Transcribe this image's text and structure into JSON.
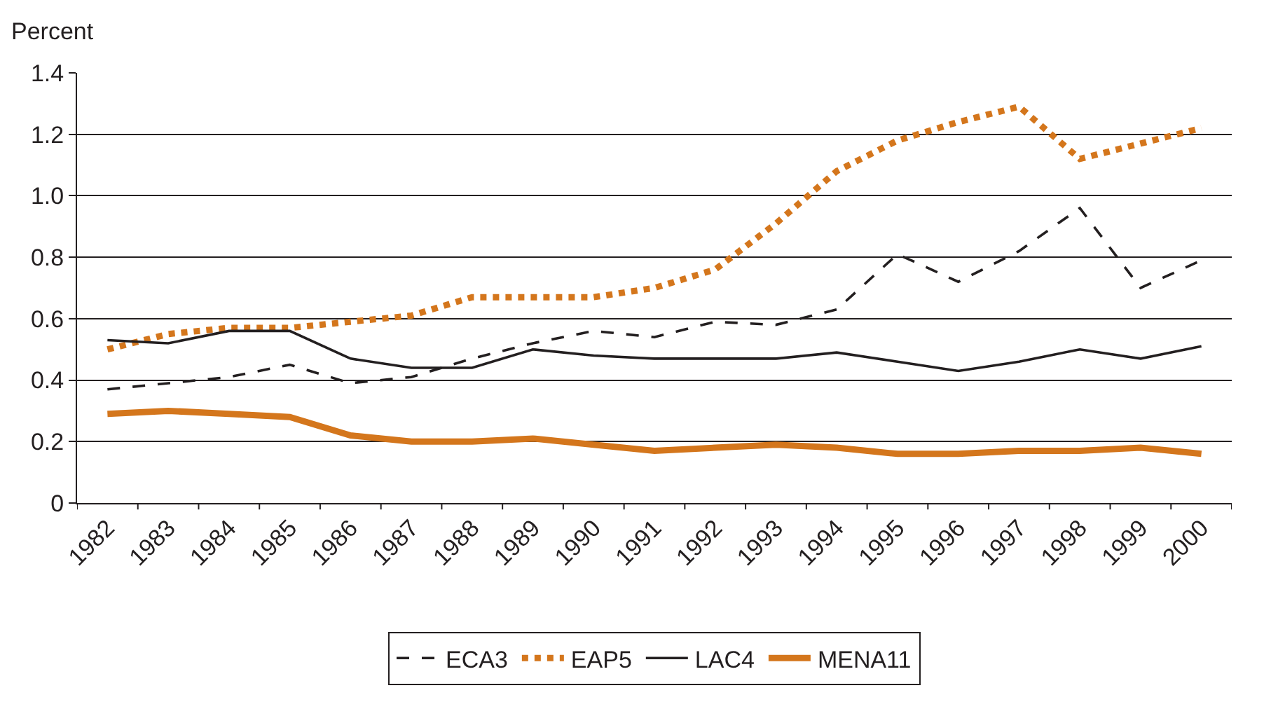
{
  "chart_data": {
    "type": "line",
    "ylabel": "Percent",
    "categories": [
      "1982",
      "1983",
      "1984",
      "1985",
      "1986",
      "1987",
      "1988",
      "1989",
      "1990",
      "1991",
      "1992",
      "1993",
      "1994",
      "1995",
      "1996",
      "1997",
      "1998",
      "1999",
      "2000"
    ],
    "series": [
      {
        "name": "ECA3",
        "color": "#231f20",
        "line_style": "dashed",
        "values": [
          0.37,
          0.39,
          0.41,
          0.45,
          0.39,
          0.41,
          0.47,
          0.52,
          0.56,
          0.54,
          0.59,
          0.58,
          0.63,
          0.81,
          0.72,
          0.82,
          0.96,
          0.7,
          0.79
        ]
      },
      {
        "name": "EAP5",
        "color": "#d4761c",
        "line_style": "dotted",
        "values": [
          0.5,
          0.55,
          0.57,
          0.57,
          0.59,
          0.61,
          0.67,
          0.67,
          0.67,
          0.7,
          0.76,
          0.91,
          1.08,
          1.18,
          1.24,
          1.29,
          1.12,
          1.17,
          1.22
        ]
      },
      {
        "name": "LAC4",
        "color": "#231f20",
        "line_style": "solid",
        "values": [
          0.53,
          0.52,
          0.56,
          0.56,
          0.47,
          0.44,
          0.44,
          0.5,
          0.48,
          0.47,
          0.47,
          0.47,
          0.49,
          0.46,
          0.43,
          0.46,
          0.5,
          0.47,
          0.51
        ]
      },
      {
        "name": "MENA11",
        "color": "#d4761c",
        "line_style": "solid",
        "values": [
          0.29,
          0.3,
          0.29,
          0.28,
          0.22,
          0.2,
          0.2,
          0.21,
          0.19,
          0.17,
          0.18,
          0.19,
          0.18,
          0.16,
          0.16,
          0.17,
          0.17,
          0.18,
          0.16
        ]
      }
    ],
    "ylim": [
      0,
      1.4
    ],
    "yticks": [
      0,
      {
        "value": 0.2,
        "label": "0.2"
      },
      {
        "value": 0.4,
        "label": "0.4"
      },
      {
        "value": 0.6,
        "label": "0.6"
      },
      {
        "value": 0.8,
        "label": "0.8"
      },
      {
        "value": 1.0,
        "label": "1.0"
      },
      {
        "value": 1.2,
        "label": "1.2"
      },
      {
        "value": 1.4,
        "label": "1.4"
      }
    ],
    "grid": "y",
    "legend": "bottom",
    "marker": "none"
  }
}
